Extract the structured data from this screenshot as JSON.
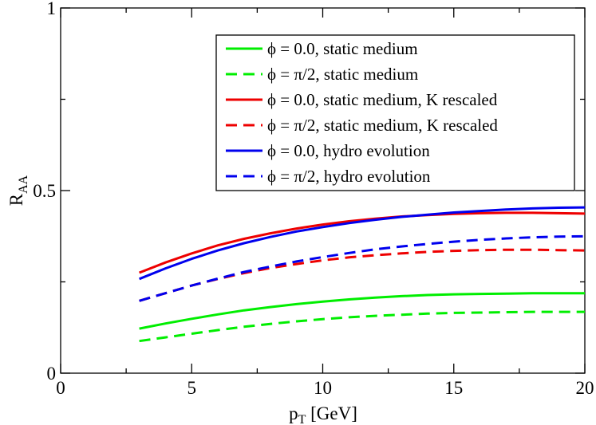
{
  "chart_data": {
    "type": "line",
    "title": "",
    "xlabel": "p",
    "xlabel_sub": "T",
    "xlabel_unit": " [GeV]",
    "ylabel": "R",
    "ylabel_sub": "AA",
    "xlim": [
      0,
      20
    ],
    "ylim": [
      0,
      1
    ],
    "x_ticks": [
      0,
      5,
      10,
      15,
      20
    ],
    "x_tick_labels": [
      "0",
      "5",
      "10",
      "15",
      "20"
    ],
    "y_ticks": [
      0,
      0.5,
      1
    ],
    "y_tick_labels": [
      "0",
      "0.5",
      "1"
    ],
    "x_minor_ticks": [
      2.5,
      7.5,
      12.5,
      17.5
    ],
    "y_minor_ticks": [
      0.25,
      0.75
    ],
    "grid": false,
    "legend_position": "top-right",
    "x": [
      3,
      4,
      5,
      6,
      7,
      8,
      9,
      10,
      11,
      12,
      13,
      14,
      15,
      16,
      17,
      18,
      19,
      20
    ],
    "series": [
      {
        "name": "ϕ = 0.0, static medium",
        "color": "#00ee00",
        "dash": "solid",
        "values": [
          0.122,
          0.136,
          0.149,
          0.161,
          0.172,
          0.181,
          0.189,
          0.196,
          0.202,
          0.207,
          0.211,
          0.214,
          0.216,
          0.217,
          0.218,
          0.219,
          0.219,
          0.219
        ]
      },
      {
        "name": "ϕ = π/2, static medium",
        "color": "#00ee00",
        "dash": "dashed",
        "values": [
          0.088,
          0.098,
          0.108,
          0.118,
          0.127,
          0.135,
          0.142,
          0.148,
          0.153,
          0.157,
          0.16,
          0.163,
          0.165,
          0.166,
          0.167,
          0.168,
          0.168,
          0.168
        ]
      },
      {
        "name": "ϕ = 0.0, static medium, K rescaled",
        "color": "#ee0000",
        "dash": "solid",
        "values": [
          0.275,
          0.303,
          0.328,
          0.35,
          0.368,
          0.383,
          0.396,
          0.407,
          0.416,
          0.423,
          0.429,
          0.433,
          0.436,
          0.438,
          0.439,
          0.439,
          0.438,
          0.437
        ]
      },
      {
        "name": "ϕ = π/2, static medium, K rescaled",
        "color": "#ee0000",
        "dash": "dashed",
        "values": [
          0.198,
          0.219,
          0.24,
          0.258,
          0.274,
          0.288,
          0.299,
          0.309,
          0.317,
          0.323,
          0.328,
          0.332,
          0.335,
          0.337,
          0.338,
          0.338,
          0.337,
          0.336
        ]
      },
      {
        "name": "ϕ = 0.0, hydro evolution",
        "color": "#0000ee",
        "dash": "solid",
        "values": [
          0.258,
          0.287,
          0.313,
          0.336,
          0.356,
          0.373,
          0.388,
          0.4,
          0.411,
          0.42,
          0.428,
          0.434,
          0.44,
          0.444,
          0.448,
          0.451,
          0.453,
          0.454
        ]
      },
      {
        "name": "ϕ = π/2, hydro evolution",
        "color": "#0000ee",
        "dash": "dashed",
        "values": [
          0.198,
          0.219,
          0.24,
          0.259,
          0.277,
          0.292,
          0.306,
          0.318,
          0.329,
          0.339,
          0.347,
          0.354,
          0.36,
          0.365,
          0.369,
          0.372,
          0.374,
          0.375
        ]
      }
    ]
  }
}
